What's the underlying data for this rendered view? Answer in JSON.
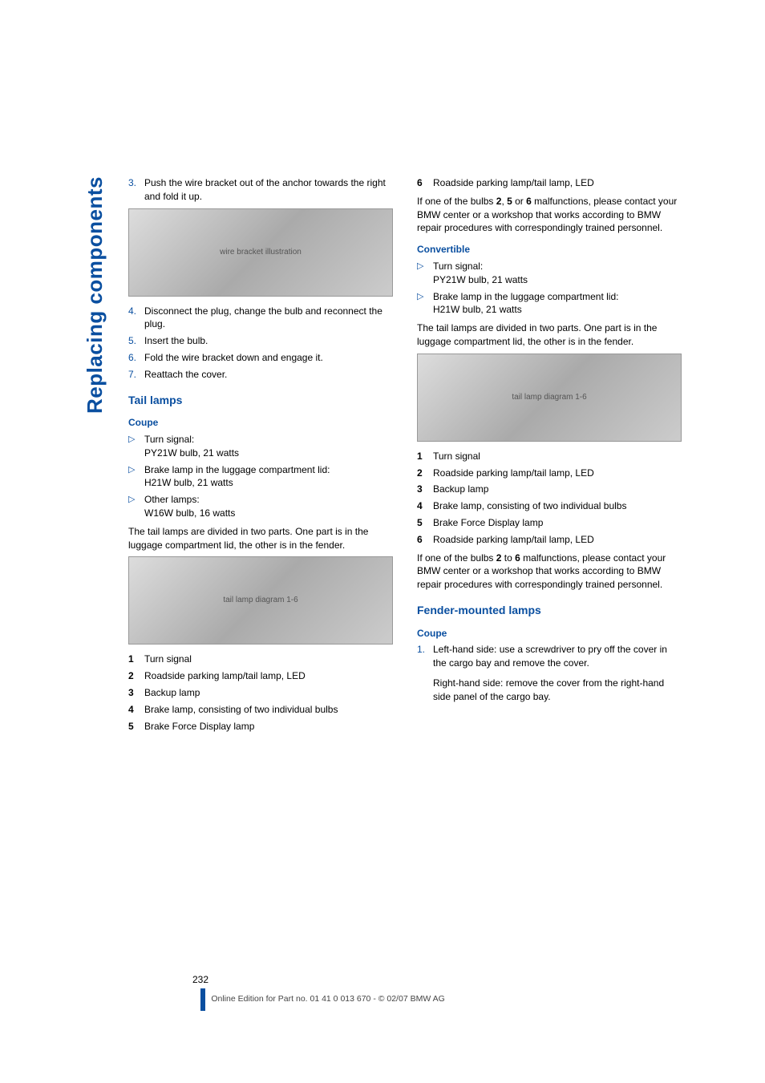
{
  "sideTab": "Replacing components",
  "left": {
    "steps1": [
      {
        "n": "3.",
        "t": "Push the wire bracket out of the anchor towards the right and fold it up."
      }
    ],
    "img1_alt": "wire bracket illustration",
    "steps2": [
      {
        "n": "4.",
        "t": "Disconnect the plug, change the bulb and reconnect the plug."
      },
      {
        "n": "5.",
        "t": "Insert the bulb."
      },
      {
        "n": "6.",
        "t": "Fold the wire bracket down and engage it."
      },
      {
        "n": "7.",
        "t": "Reattach the cover."
      }
    ],
    "h_tail": "Tail lamps",
    "h_coupe": "Coupe",
    "coupe_bullets": [
      {
        "l1": "Turn signal:",
        "l2": "PY21W bulb, 21 watts"
      },
      {
        "l1": "Brake lamp in the luggage compartment lid:",
        "l2": "H21W bulb, 21 watts"
      },
      {
        "l1": "Other lamps:",
        "l2": "W16W bulb, 16 watts"
      }
    ],
    "p_divided": "The tail lamps are divided in two parts. One part is in the luggage compartment lid, the other is in the fender.",
    "img2_alt": "tail lamp diagram 1-6",
    "defs": [
      {
        "n": "1",
        "t": "Turn signal"
      },
      {
        "n": "2",
        "t": "Roadside parking lamp/tail lamp, LED"
      },
      {
        "n": "3",
        "t": "Backup lamp"
      },
      {
        "n": "4",
        "t": "Brake lamp, consisting of two individual bulbs"
      },
      {
        "n": "5",
        "t": "Brake Force Display lamp"
      }
    ]
  },
  "right": {
    "def6": {
      "n": "6",
      "t": "Roadside parking lamp/tail lamp, LED"
    },
    "p_malf1_a": "If one of the bulbs ",
    "p_malf1_b": ", ",
    "p_malf1_c": " or ",
    "p_malf1_d": " malfunctions, please contact your BMW center or a workshop that works according to BMW repair procedures with correspondingly trained personnel.",
    "b2": "2",
    "b5": "5",
    "b6": "6",
    "h_conv": "Convertible",
    "conv_bullets": [
      {
        "l1": "Turn signal:",
        "l2": "PY21W bulb, 21 watts"
      },
      {
        "l1": "Brake lamp in the luggage compartment lid:",
        "l2": "H21W bulb, 21 watts"
      }
    ],
    "p_divided": "The tail lamps are divided in two parts. One part is in the luggage compartment lid, the other is in the fender.",
    "img_alt": "tail lamp diagram 1-6",
    "defs": [
      {
        "n": "1",
        "t": "Turn signal"
      },
      {
        "n": "2",
        "t": "Roadside parking lamp/tail lamp, LED"
      },
      {
        "n": "3",
        "t": "Backup lamp"
      },
      {
        "n": "4",
        "t": "Brake lamp, consisting of two individual bulbs"
      },
      {
        "n": "5",
        "t": "Brake Force Display lamp"
      },
      {
        "n": "6",
        "t": "Roadside parking lamp/tail lamp, LED"
      }
    ],
    "p_malf2_a": "If one of the bulbs ",
    "p_malf2_b": " to ",
    "p_malf2_c": " malfunctions, please contact your BMW center or a workshop that works according to BMW repair procedures with correspondingly trained personnel.",
    "h_fender": "Fender-mounted lamps",
    "h_coupe2": "Coupe",
    "coupe2_step": {
      "n": "1.",
      "t1": "Left-hand side: use a screwdriver to pry off the cover in the cargo bay and remove the cover.",
      "t2": "Right-hand side: remove the cover from the right-hand side panel of the cargo bay."
    }
  },
  "footer": {
    "page": "232",
    "edition": "Online Edition for Part no. 01 41 0 013 670 - © 02/07 BMW AG"
  }
}
